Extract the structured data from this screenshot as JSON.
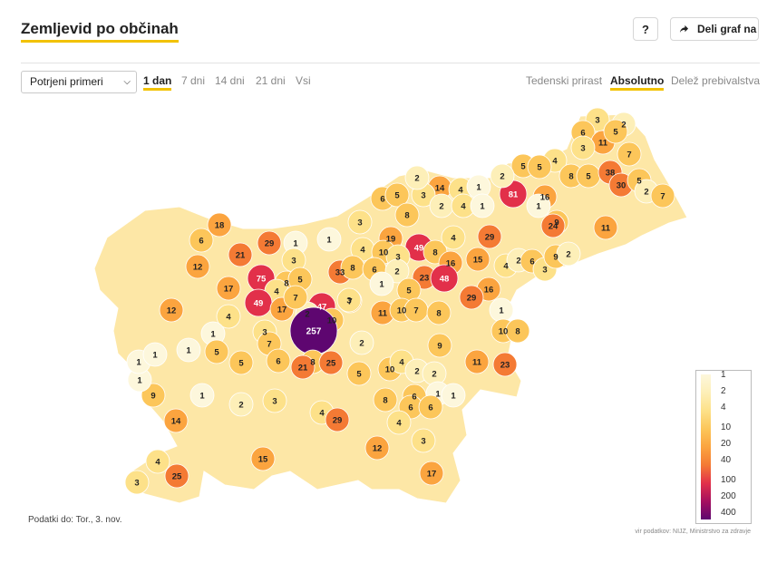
{
  "header": {
    "title": "Zemljevid po občinah",
    "help_label": "?",
    "share_label": "Deli graf na"
  },
  "controls": {
    "metric_select": "Potrjeni primeri",
    "period_tabs": [
      {
        "label": "1 dan",
        "active": true
      },
      {
        "label": "7 dni",
        "active": false
      },
      {
        "label": "14 dni",
        "active": false
      },
      {
        "label": "21 dni",
        "active": false
      },
      {
        "label": "Vsi",
        "active": false
      }
    ],
    "mode_tabs": [
      {
        "label": "Tedenski prirast",
        "active": false
      },
      {
        "label": "Absolutno",
        "active": true
      },
      {
        "label": "Delež prebivalstva",
        "active": false
      }
    ]
  },
  "footer": {
    "data_date": "Podatki do: Tor., 3. nov.",
    "source": "vir podatkov: NIJZ, Ministrstvo za zdravje"
  },
  "legend": {
    "labels": [
      "1",
      "2",
      "4",
      "10",
      "20",
      "40",
      "100",
      "200",
      "400"
    ],
    "colors": [
      "#fdf7dc",
      "#fdefb8",
      "#fde189",
      "#fcc65a",
      "#fba43f",
      "#f47a34",
      "#e2304a",
      "#a5105f",
      "#5e0670"
    ]
  },
  "colors": {
    "accent_underline": "#f2c200",
    "no_data": "#ffffff"
  },
  "map_values": [
    3,
    2,
    6,
    11,
    5,
    7,
    3,
    5,
    4,
    5,
    8,
    5,
    38,
    30,
    5,
    2,
    7,
    81,
    16,
    9,
    2,
    14,
    4,
    1,
    6,
    5,
    3,
    2,
    8,
    2,
    4,
    1,
    1,
    24,
    11,
    29,
    19,
    49,
    8,
    4,
    3,
    18,
    6,
    29,
    1,
    1,
    12,
    21,
    3,
    4,
    10,
    3,
    16,
    15,
    4,
    2,
    6,
    3,
    9,
    2,
    75,
    8,
    5,
    4,
    33,
    8,
    6,
    2,
    23,
    48,
    7,
    16,
    17,
    47,
    10,
    1,
    5,
    29,
    12,
    49,
    17,
    2,
    7,
    11,
    10,
    7,
    8,
    1,
    257,
    10,
    8,
    4,
    1,
    3,
    9,
    11,
    23,
    2,
    3,
    7,
    6,
    8,
    25,
    21,
    5,
    10,
    4,
    2,
    14,
    9,
    1,
    2,
    1,
    6,
    6,
    2,
    3,
    4,
    29,
    8,
    6,
    1,
    4,
    12,
    3,
    15,
    17,
    25,
    4,
    3,
    1,
    1,
    1,
    1,
    5,
    5
  ]
}
